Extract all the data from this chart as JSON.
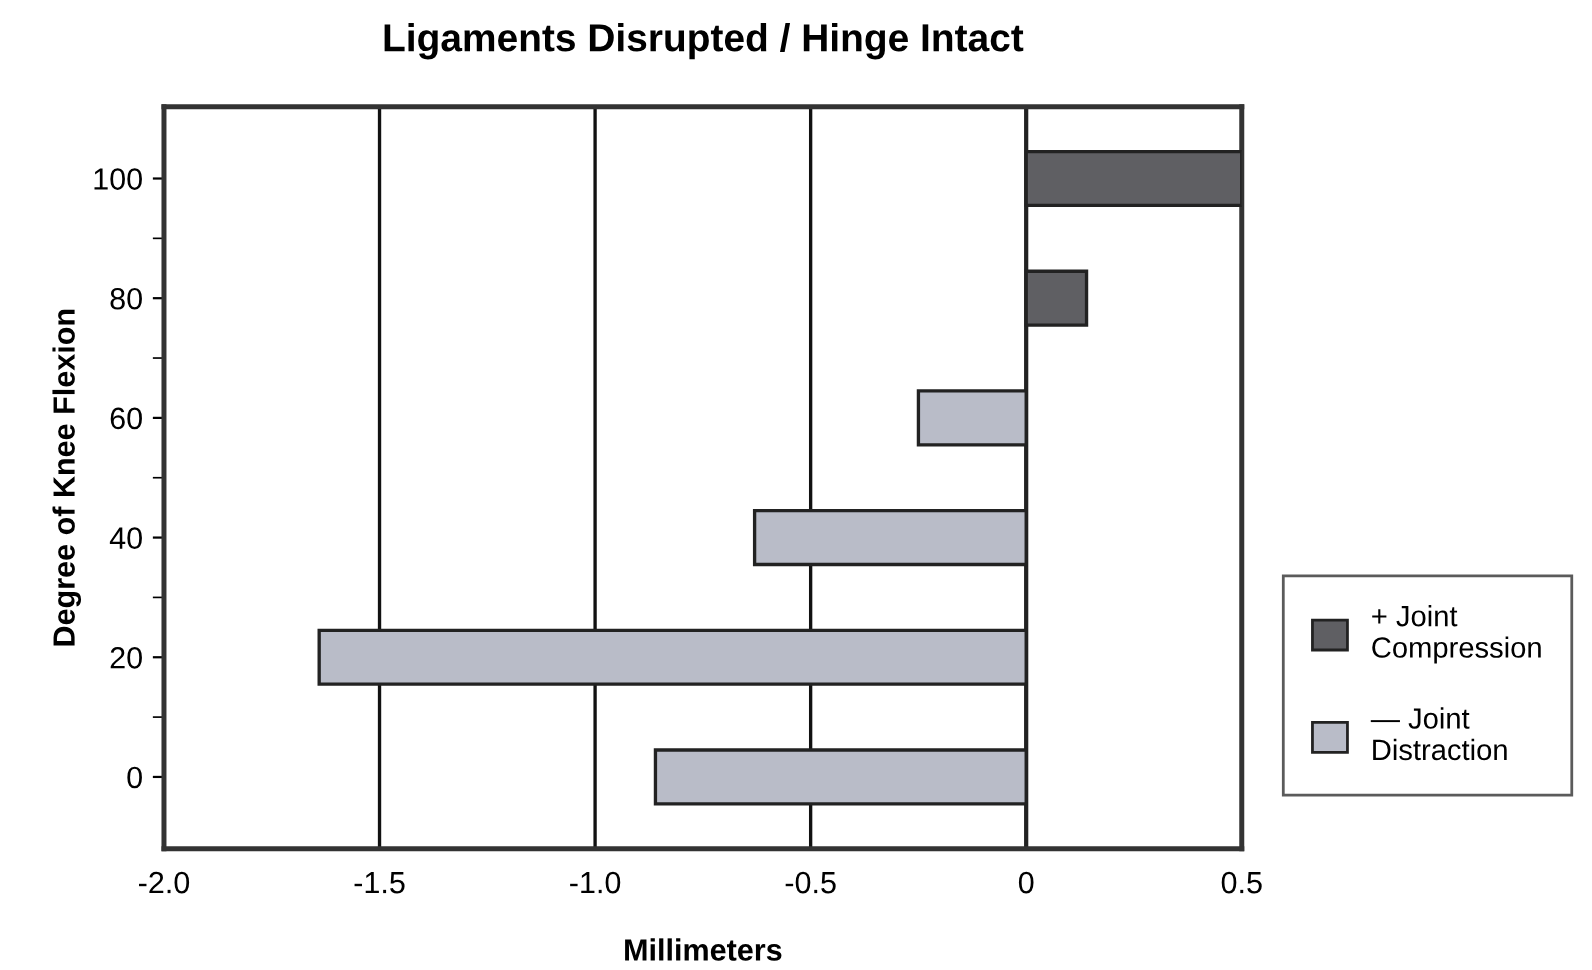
{
  "chart_data": {
    "type": "bar",
    "orientation": "horizontal",
    "title": "Ligaments Disrupted / Hinge Intact",
    "xlabel": "Millimeters",
    "ylabel": "Degree of Knee Flexion",
    "categories": [
      "100",
      "80",
      "60",
      "40",
      "20",
      "0"
    ],
    "series": [
      {
        "name": "+ Joint\nCompression",
        "color": "#5f5f63",
        "values": [
          0.5,
          0.14,
          null,
          null,
          null,
          null
        ]
      },
      {
        "name": "— Joint\nDistraction",
        "color": "#b9bcc8",
        "values": [
          null,
          null,
          -0.25,
          -0.63,
          -1.64,
          -0.86
        ]
      }
    ],
    "xlim": [
      -2.0,
      0.5
    ],
    "xticks": [
      {
        "value": -2.0,
        "label": "-2.0"
      },
      {
        "value": -1.5,
        "label": "-1.5"
      },
      {
        "value": -1.0,
        "label": "-1.0"
      },
      {
        "value": -0.5,
        "label": "-0.5"
      },
      0,
      0.5
    ],
    "grid": "x",
    "legend": "right"
  }
}
